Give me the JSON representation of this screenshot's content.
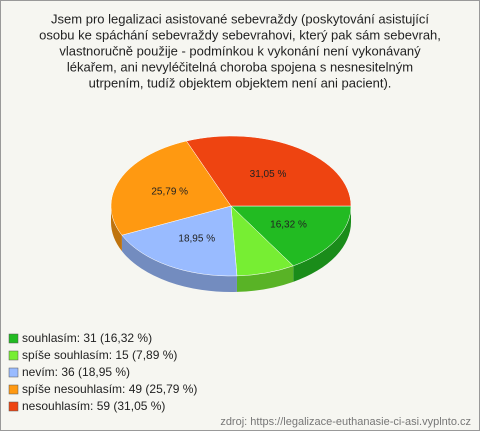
{
  "chart_data": {
    "type": "pie",
    "title": [
      "Jsem pro legalizaci asistované sebevraždy (poskytování asistující",
      "osobu ke spáchání sebevraždy sebevrahovi, který pak sám sebevrah,",
      "vlastnoručně použije - podmínkou k vykonání není vykonávaný",
      "lékařem, ani nevyléčitelná choroba spojena s nesnesitelným",
      "utrpením, tudíž objektem objektem není ani pacient)."
    ],
    "categories": [
      "souhlasím: 31 (16,32 %)",
      "spíše souhlasím: 15 (7,89 %)",
      "nevím: 36 (18,95 %)",
      "spíše nesouhlasím: 49 (25,79 %)",
      "nesouhlasím: 59 (31,05 %)"
    ],
    "values": [
      16.32,
      7.89,
      18.95,
      25.79,
      31.05
    ],
    "value_labels": [
      "16,32 %",
      null,
      "18,95 %",
      "25,79 %",
      "31,05 %"
    ],
    "colors": [
      "#22bb22",
      "#77ee33",
      "#99bbff",
      "#ff9911",
      "#ee4411"
    ],
    "source": "zdroj: https://legalizace-euthanasie-ci-asi.vyplnto.cz"
  }
}
